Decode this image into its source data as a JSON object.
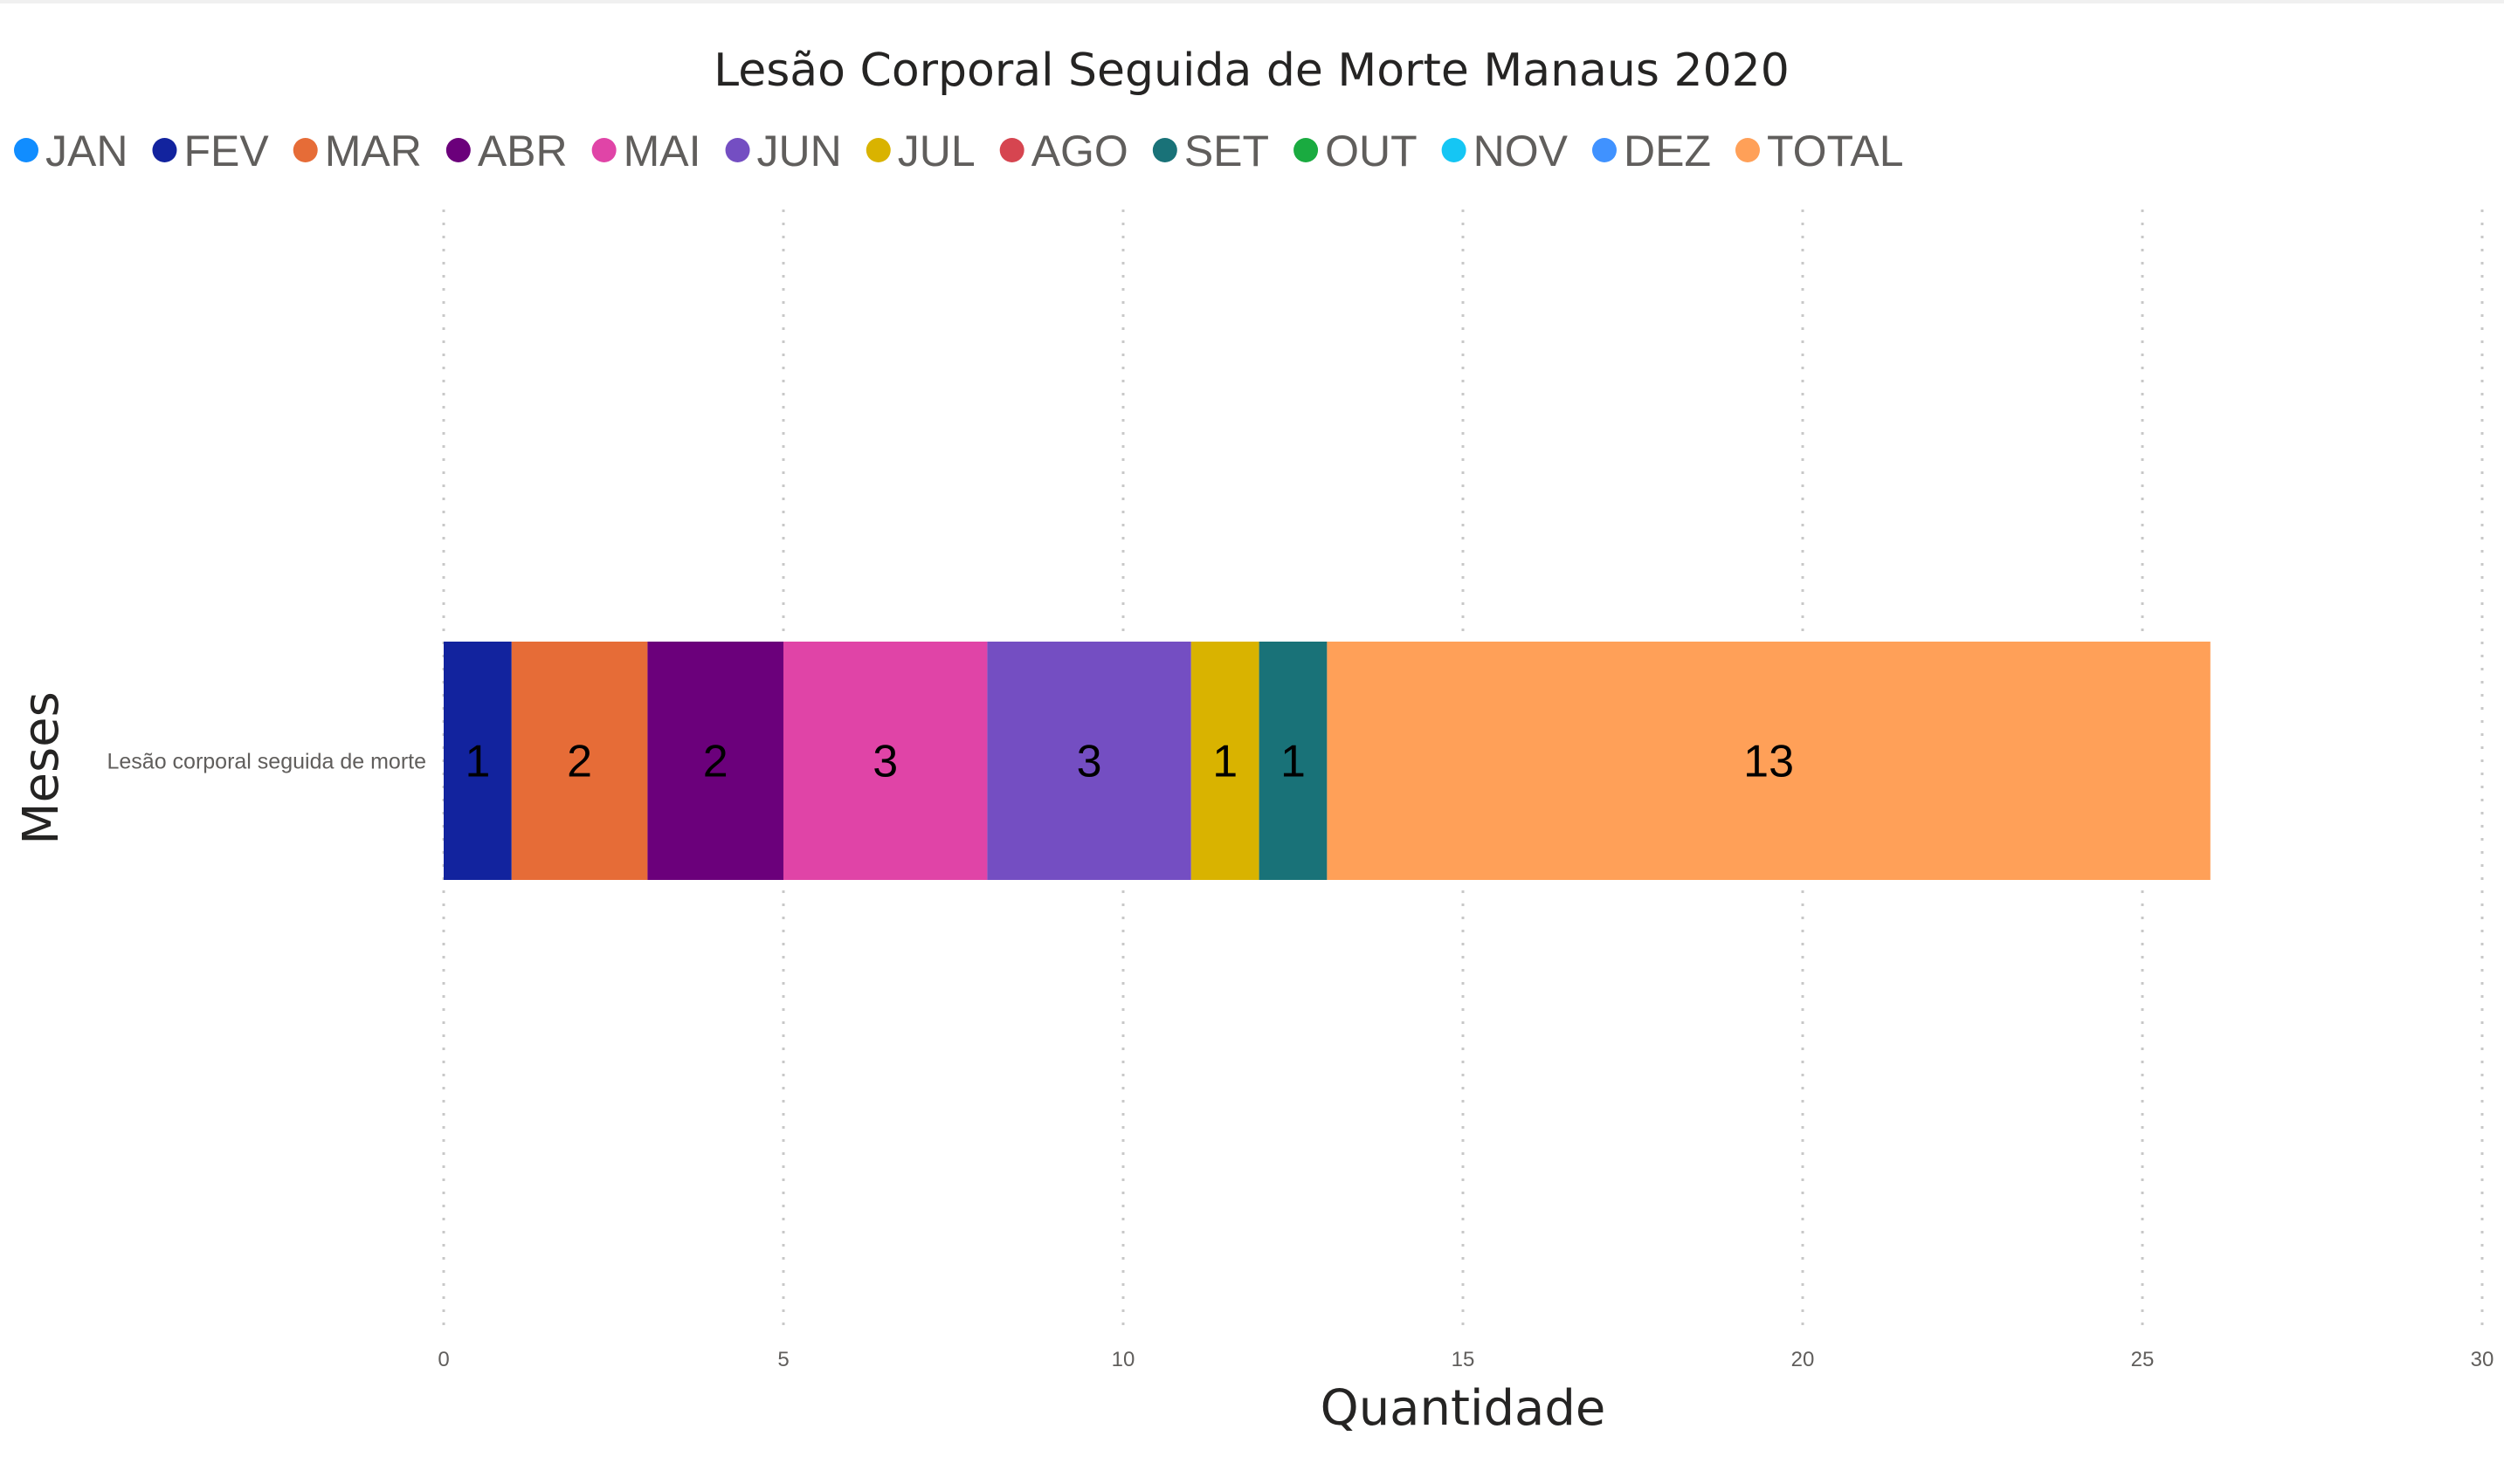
{
  "chart_data": {
    "type": "bar",
    "orientation": "horizontal",
    "stacked": true,
    "title": "Lesão Corporal Seguida de Morte Manaus 2020",
    "xlabel": "Quantidade",
    "ylabel": "Meses",
    "categories": [
      "Lesão corporal seguida de morte"
    ],
    "xlim": [
      0,
      30
    ],
    "xticks": [
      0,
      5,
      10,
      15,
      20,
      25,
      30
    ],
    "grid": true,
    "legend_position": "top-left",
    "series": [
      {
        "name": "JAN",
        "color": "#118dff",
        "values": [
          0
        ]
      },
      {
        "name": "FEV",
        "color": "#12239e",
        "values": [
          1
        ]
      },
      {
        "name": "MAR",
        "color": "#e66c37",
        "values": [
          2
        ]
      },
      {
        "name": "ABR",
        "color": "#6b007b",
        "values": [
          2
        ]
      },
      {
        "name": "MAI",
        "color": "#e044a7",
        "values": [
          3
        ]
      },
      {
        "name": "JUN",
        "color": "#744ec2",
        "values": [
          3
        ]
      },
      {
        "name": "JUL",
        "color": "#d9b300",
        "values": [
          1
        ]
      },
      {
        "name": "AGO",
        "color": "#d64550",
        "values": [
          0
        ]
      },
      {
        "name": "SET",
        "color": "#197278",
        "values": [
          1
        ]
      },
      {
        "name": "OUT",
        "color": "#1aab40",
        "values": [
          0
        ]
      },
      {
        "name": "NOV",
        "color": "#15c6f4",
        "values": [
          0
        ]
      },
      {
        "name": "DEZ",
        "color": "#4092ff",
        "values": [
          0
        ]
      },
      {
        "name": "TOTAL",
        "color": "#ffa058",
        "values": [
          13
        ]
      }
    ]
  }
}
